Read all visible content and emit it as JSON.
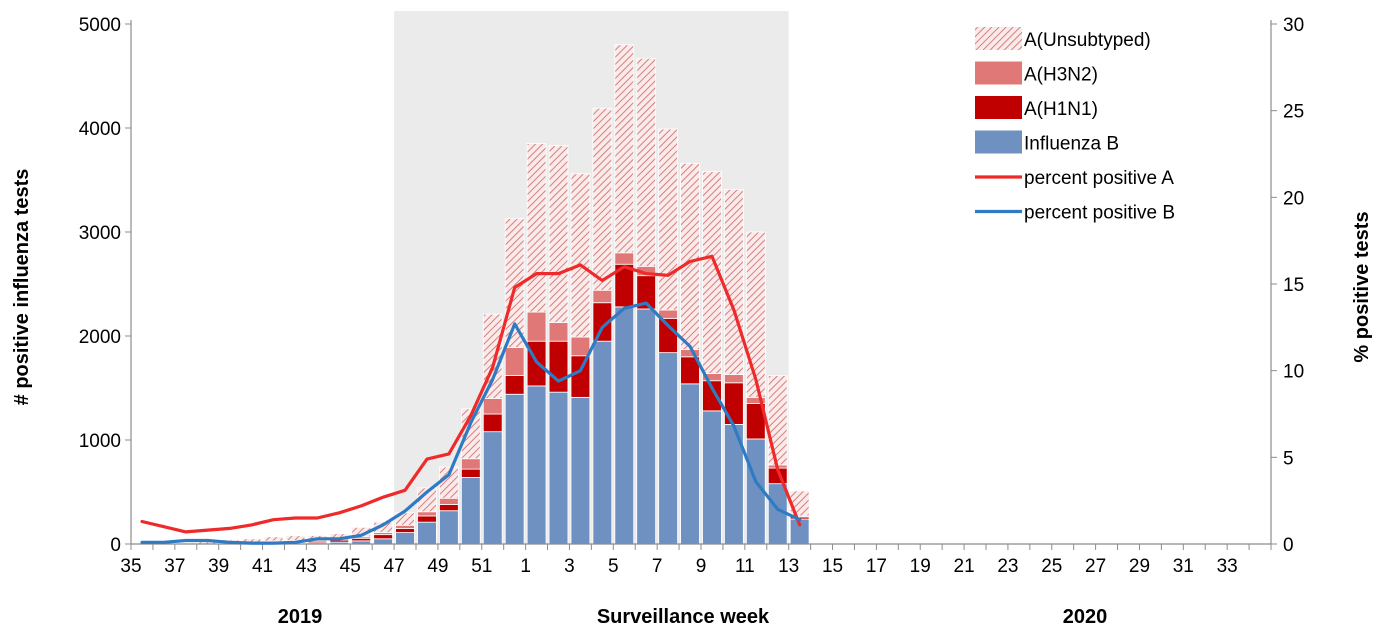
{
  "chart_data": {
    "type": "bar",
    "stacked": true,
    "title": "",
    "xlabel": "Surveillance week",
    "ylabel_left": "# positive influenza tests",
    "ylabel_right": "% positive tests",
    "ylim_left": [
      0,
      5000
    ],
    "ylim_right": [
      0,
      30
    ],
    "yticks_left": [
      "0",
      "1000",
      "2000",
      "3000",
      "4000",
      "5000"
    ],
    "yticks_right": [
      "0",
      "5",
      "10",
      "15",
      "20",
      "25",
      "30"
    ],
    "year_labels": {
      "left": "2019",
      "right": "2020"
    },
    "shaded_range": {
      "from_week": "47",
      "to_week": "12"
    },
    "legend_position": "top-right",
    "colors": {
      "unsubtyped": "#e6a7a7",
      "h3n2": "#e07878",
      "h1n1": "#c00000",
      "influenza_b": "#6e91c2",
      "line_a": "#ee2a2a",
      "line_b": "#2e7bc4",
      "shade": "#ebebeb"
    },
    "categories": [
      "35",
      "36",
      "37",
      "38",
      "39",
      "40",
      "41",
      "42",
      "43",
      "44",
      "45",
      "46",
      "47",
      "48",
      "49",
      "50",
      "51",
      "52",
      "1",
      "2",
      "3",
      "4",
      "5",
      "6",
      "7",
      "8",
      "9",
      "10",
      "11",
      "12",
      "13",
      "14",
      "15",
      "16",
      "17",
      "18",
      "19",
      "20",
      "21",
      "22",
      "23",
      "24",
      "25",
      "26",
      "27",
      "28",
      "29",
      "30",
      "31",
      "32",
      "33",
      "34"
    ],
    "series": [
      {
        "name": "Influenza B",
        "key": "influenza_b",
        "values": [
          0,
          0,
          0,
          0,
          0,
          5,
          8,
          10,
          12,
          18,
          30,
          50,
          110,
          210,
          320,
          640,
          1080,
          1440,
          1520,
          1460,
          1410,
          1950,
          2280,
          2260,
          1840,
          1540,
          1280,
          1150,
          1010,
          580,
          240,
          0,
          0,
          0,
          0,
          0,
          0,
          0,
          0,
          0,
          0,
          0,
          0,
          0,
          0,
          0,
          0,
          0,
          0,
          0,
          0,
          0
        ]
      },
      {
        "name": "A(H1N1)",
        "key": "h1n1",
        "values": [
          0,
          0,
          0,
          0,
          5,
          5,
          10,
          15,
          15,
          20,
          25,
          40,
          40,
          60,
          60,
          80,
          170,
          180,
          430,
          490,
          400,
          370,
          410,
          320,
          330,
          260,
          290,
          400,
          340,
          150,
          20,
          0,
          0,
          0,
          0,
          0,
          0,
          0,
          0,
          0,
          0,
          0,
          0,
          0,
          0,
          0,
          0,
          0,
          0,
          0,
          0,
          0
        ]
      },
      {
        "name": "A(H3N2)",
        "key": "h3n2",
        "values": [
          0,
          0,
          0,
          0,
          5,
          5,
          10,
          10,
          10,
          15,
          15,
          20,
          30,
          40,
          60,
          100,
          150,
          270,
          280,
          180,
          180,
          120,
          110,
          90,
          80,
          70,
          70,
          80,
          60,
          30,
          10,
          0,
          0,
          0,
          0,
          0,
          0,
          0,
          0,
          0,
          0,
          0,
          0,
          0,
          0,
          0,
          0,
          0,
          0,
          0,
          0,
          0
        ]
      },
      {
        "name": "A(Unsubtyped)",
        "key": "unsubtyped",
        "values": [
          0,
          0,
          10,
          20,
          30,
          35,
          42,
          45,
          45,
          47,
          90,
          100,
          120,
          230,
          300,
          480,
          810,
          1240,
          1620,
          1700,
          1570,
          1750,
          2000,
          2000,
          1740,
          1790,
          1940,
          1780,
          1590,
          860,
          240,
          0,
          0,
          0,
          0,
          0,
          0,
          0,
          0,
          0,
          0,
          0,
          0,
          0,
          0,
          0,
          0,
          0,
          0,
          0,
          0,
          0
        ]
      }
    ],
    "lines": [
      {
        "name": "percent positive A",
        "key": "line_a",
        "values": [
          1.3,
          1.0,
          0.7,
          0.8,
          0.9,
          1.1,
          1.4,
          1.5,
          1.5,
          1.8,
          2.2,
          2.7,
          3.1,
          4.9,
          5.2,
          7.4,
          10.2,
          14.8,
          15.6,
          15.6,
          16.1,
          15.2,
          16.0,
          15.6,
          15.5,
          16.3,
          16.6,
          13.5,
          9.5,
          4.3,
          1.1,
          null,
          null,
          null,
          null,
          null,
          null,
          null,
          null,
          null,
          null,
          null,
          null,
          null,
          null,
          null,
          null,
          null,
          null,
          null,
          null,
          null
        ]
      },
      {
        "name": "percent positive B",
        "key": "line_b",
        "values": [
          0.1,
          0.1,
          0.2,
          0.2,
          0.1,
          0.05,
          0.05,
          0.1,
          0.3,
          0.3,
          0.5,
          1.1,
          1.9,
          3.0,
          4.0,
          7.0,
          9.5,
          12.7,
          10.5,
          9.4,
          10.0,
          12.5,
          13.6,
          13.9,
          12.6,
          11.4,
          9.0,
          6.8,
          3.6,
          2.0,
          1.4,
          null,
          null,
          null,
          null,
          null,
          null,
          null,
          null,
          null,
          null,
          null,
          null,
          null,
          null,
          null,
          null,
          null,
          null,
          null,
          null,
          null
        ]
      }
    ],
    "legend": [
      "A(Unsubtyped)",
      "A(H3N2)",
      "A(H1N1)",
      "Influenza B",
      "percent positive A",
      "percent positive B"
    ]
  }
}
